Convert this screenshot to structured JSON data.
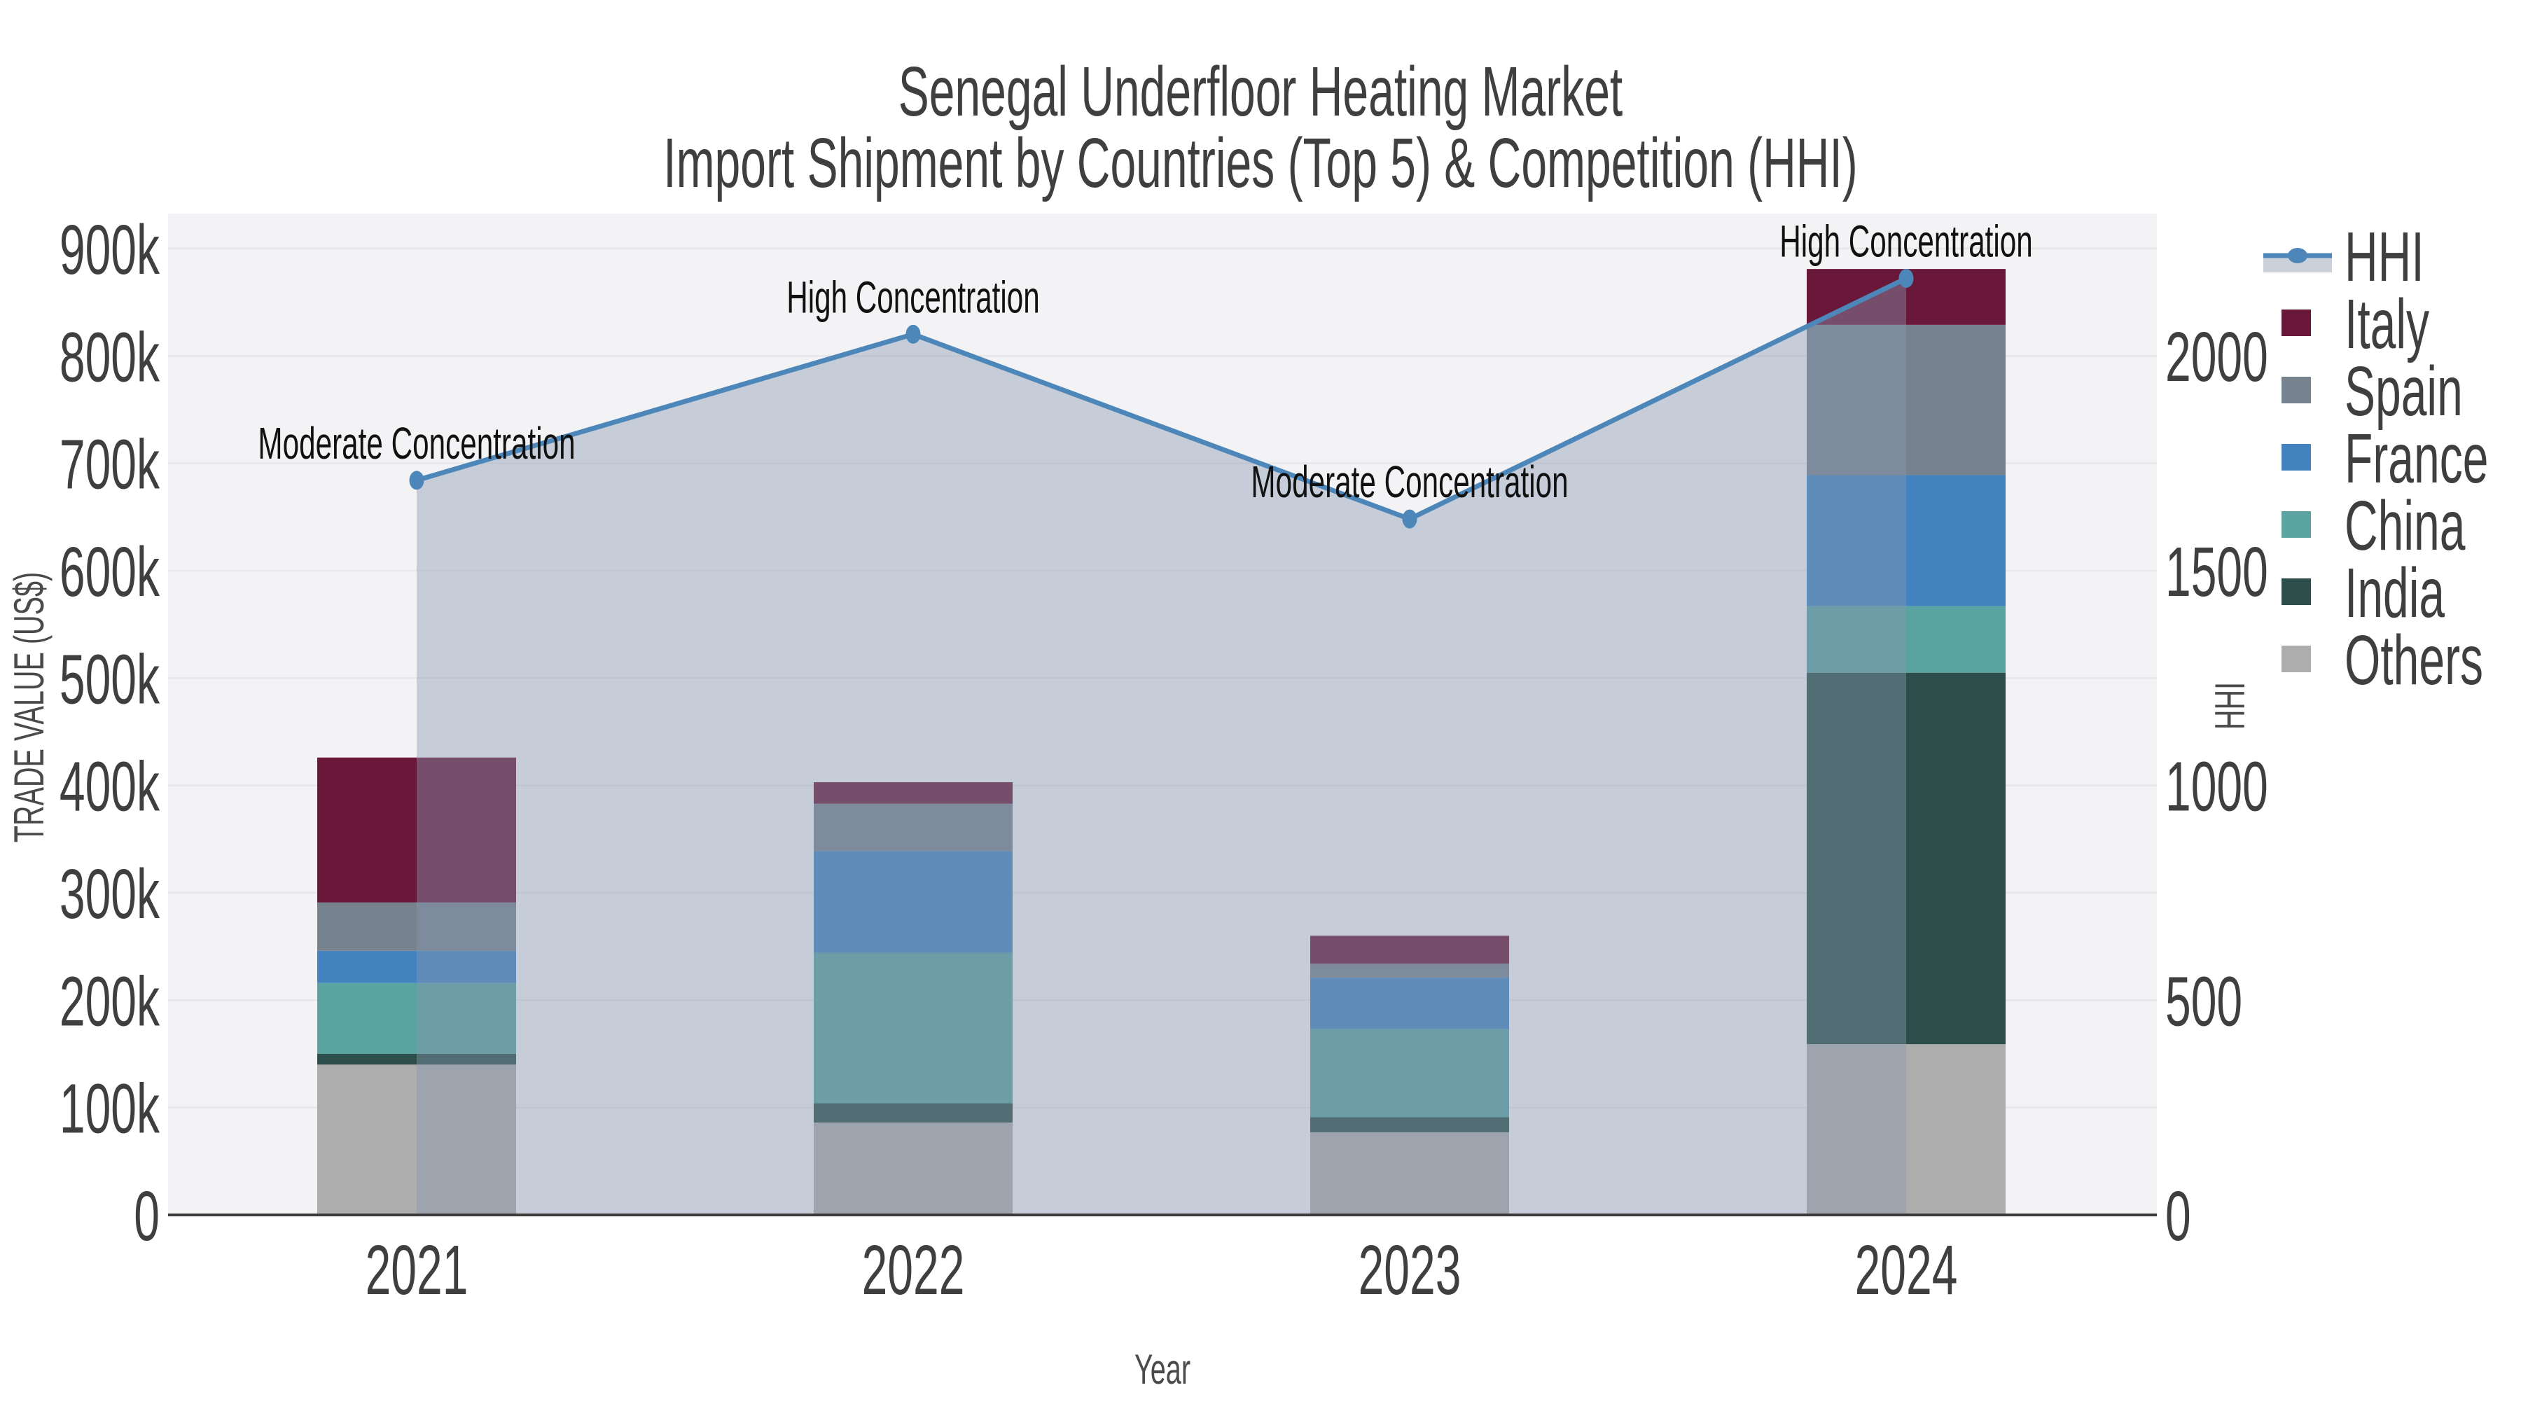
{
  "title": {
    "line1": "Senegal Underfloor Heating Market",
    "line2": "Import Shipment by Countries (Top 5) & Competition (HHI)"
  },
  "axes": {
    "x_label": "Year",
    "y_left_label": "TRADE VALUE (US$)",
    "y_right_label": "HHI",
    "y_left_ticks": [
      "0",
      "100k",
      "200k",
      "300k",
      "400k",
      "500k",
      "600k",
      "700k",
      "800k",
      "900k"
    ],
    "y_left_tick_values": [
      0,
      100,
      200,
      300,
      400,
      500,
      600,
      700,
      800,
      900
    ],
    "y_right_ticks": [
      "0",
      "500",
      "1000",
      "1500",
      "2000"
    ],
    "y_right_tick_values": [
      0,
      500,
      1000,
      1500,
      2000
    ],
    "x_ticks": [
      "2021",
      "2022",
      "2023",
      "2024"
    ]
  },
  "chart_data": {
    "type": "bar+line",
    "title": "Senegal Underfloor Heating Market — Import Shipment by Countries (Top 5) & Competition (HHI)",
    "xlabel": "Year",
    "ylabel_left": "TRADE VALUE (US$)",
    "ylabel_right": "HHI",
    "y_left_unit": "thousand US$",
    "ylim_left": [
      0,
      900
    ],
    "ylim_right": [
      0,
      2000
    ],
    "grid": "horizontal",
    "legend_position": "right-outside",
    "categories": [
      "2021",
      "2022",
      "2023",
      "2024"
    ],
    "stack_order_bottom_to_top": [
      "Others",
      "India",
      "China",
      "France",
      "Spain",
      "Italy"
    ],
    "series": [
      {
        "name": "Others",
        "color": "#ADADAD",
        "values": [
          140,
          86,
          77,
          159
        ]
      },
      {
        "name": "India",
        "color": "#2D4E4B",
        "values": [
          10,
          18,
          14,
          346
        ]
      },
      {
        "name": "China",
        "color": "#5BA3A0",
        "values": [
          66,
          140,
          82,
          62
        ]
      },
      {
        "name": "France",
        "color": "#4384C0",
        "values": [
          30,
          95,
          48,
          122
        ]
      },
      {
        "name": "Spain",
        "color": "#77828F",
        "values": [
          45,
          44,
          13,
          140
        ]
      },
      {
        "name": "Italy",
        "color": "#691839",
        "values": [
          135,
          20,
          26,
          52
        ]
      }
    ],
    "hhi": {
      "name": "HHI",
      "color": "#4D87BA",
      "area_fill": "rgba(136,152,177,0.42)",
      "legend_band_color": "#CBD1DB",
      "values": [
        1710,
        2050,
        1620,
        2180
      ]
    },
    "annotations": [
      {
        "category": "2021",
        "text": "Moderate Concentration"
      },
      {
        "category": "2022",
        "text": "High Concentration"
      },
      {
        "category": "2023",
        "text": "Moderate Concentration"
      },
      {
        "category": "2024",
        "text": "High Concentration"
      }
    ]
  },
  "legend": {
    "items": [
      {
        "label": "HHI",
        "type": "line"
      },
      {
        "label": "Italy",
        "type": "patch"
      },
      {
        "label": "Spain",
        "type": "patch"
      },
      {
        "label": "France",
        "type": "patch"
      },
      {
        "label": "China",
        "type": "patch"
      },
      {
        "label": "India",
        "type": "patch"
      },
      {
        "label": "Others",
        "type": "patch"
      }
    ]
  },
  "colors": {
    "plot_background": "#F3F3F5",
    "grid_line": "#E7E7EA",
    "axis_spine": "#3A3A3A",
    "text": "#3F3F3F",
    "annotation_text": "#111111"
  }
}
